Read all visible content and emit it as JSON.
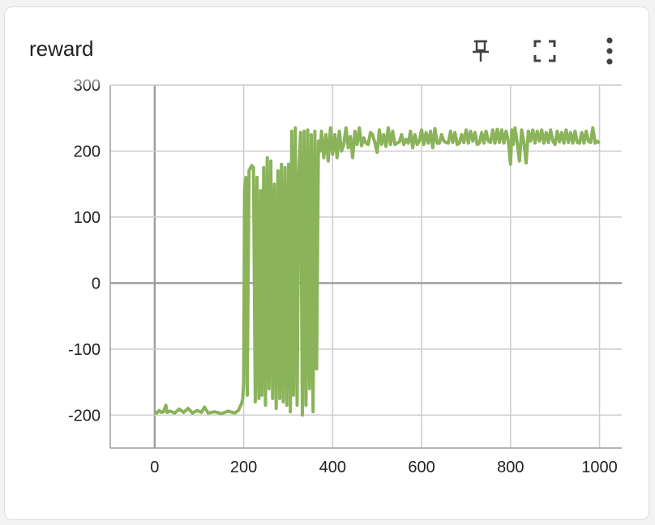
{
  "card": {
    "title": "reward",
    "actions": [
      {
        "name": "pin-icon"
      },
      {
        "name": "fullscreen-icon"
      },
      {
        "name": "more-vert-icon"
      }
    ]
  },
  "colors": {
    "series": "#8ab35a",
    "grid": "#cccccc",
    "axis": "#9e9e9e",
    "text": "#212121"
  },
  "chart_data": {
    "type": "line",
    "title": "",
    "xlabel": "",
    "ylabel": "",
    "xlim": [
      -100,
      1050
    ],
    "ylim": [
      -250,
      300
    ],
    "xticks": [
      0,
      200,
      400,
      600,
      800,
      1000
    ],
    "yticks": [
      -200,
      -100,
      0,
      100,
      200,
      300
    ],
    "xtick_labels": [
      "0",
      "200",
      "400",
      "600",
      "800",
      "1000"
    ],
    "ytick_labels": [
      "-200",
      "-100",
      "0",
      "100",
      "200",
      "300"
    ],
    "grid": true,
    "legend": "none",
    "series": [
      {
        "color": "#8ab35a",
        "points": [
          [
            0,
            -195
          ],
          [
            5,
            -197
          ],
          [
            10,
            -193
          ],
          [
            15,
            -196
          ],
          [
            20,
            -195
          ],
          [
            25,
            -185
          ],
          [
            28,
            -196
          ],
          [
            35,
            -194
          ],
          [
            45,
            -197
          ],
          [
            55,
            -191
          ],
          [
            65,
            -196
          ],
          [
            75,
            -190
          ],
          [
            85,
            -197
          ],
          [
            95,
            -193
          ],
          [
            105,
            -196
          ],
          [
            112,
            -188
          ],
          [
            120,
            -197
          ],
          [
            135,
            -195
          ],
          [
            150,
            -198
          ],
          [
            165,
            -194
          ],
          [
            180,
            -197
          ],
          [
            188,
            -193
          ],
          [
            195,
            -183
          ],
          [
            198,
            -175
          ],
          [
            200,
            -150
          ],
          [
            202,
            140
          ],
          [
            205,
            160
          ],
          [
            208,
            -170
          ],
          [
            212,
            170
          ],
          [
            218,
            178
          ],
          [
            222,
            175
          ],
          [
            226,
            -180
          ],
          [
            230,
            160
          ],
          [
            234,
            -175
          ],
          [
            238,
            140
          ],
          [
            241,
            -170
          ],
          [
            245,
            175
          ],
          [
            249,
            -185
          ],
          [
            253,
            190
          ],
          [
            257,
            -160
          ],
          [
            261,
            185
          ],
          [
            265,
            -175
          ],
          [
            269,
            150
          ],
          [
            273,
            -190
          ],
          [
            277,
            170
          ],
          [
            281,
            -175
          ],
          [
            285,
            180
          ],
          [
            289,
            -180
          ],
          [
            293,
            175
          ],
          [
            297,
            -185
          ],
          [
            301,
            180
          ],
          [
            305,
            -195
          ],
          [
            308,
            230
          ],
          [
            312,
            -170
          ],
          [
            316,
            235
          ],
          [
            320,
            -185
          ],
          [
            324,
            165
          ],
          [
            328,
            228
          ],
          [
            332,
            -200
          ],
          [
            336,
            230
          ],
          [
            340,
            -185
          ],
          [
            344,
            232
          ],
          [
            348,
            -160
          ],
          [
            352,
            225
          ],
          [
            356,
            -195
          ],
          [
            360,
            230
          ],
          [
            364,
            -130
          ],
          [
            368,
            215
          ],
          [
            372,
            200
          ],
          [
            375,
            230
          ],
          [
            380,
            190
          ],
          [
            385,
            225
          ],
          [
            390,
            185
          ],
          [
            395,
            235
          ],
          [
            400,
            195
          ],
          [
            405,
            225
          ],
          [
            410,
            190
          ],
          [
            415,
            230
          ],
          [
            420,
            200
          ],
          [
            425,
            210
          ],
          [
            430,
            235
          ],
          [
            435,
            205
          ],
          [
            440,
            222
          ],
          [
            445,
            190
          ],
          [
            450,
            230
          ],
          [
            455,
            210
          ],
          [
            460,
            235
          ],
          [
            465,
            208
          ],
          [
            470,
            220
          ],
          [
            475,
            212
          ],
          [
            480,
            210
          ],
          [
            485,
            228
          ],
          [
            490,
            225
          ],
          [
            495,
            212
          ],
          [
            500,
            198
          ],
          [
            505,
            232
          ],
          [
            510,
            210
          ],
          [
            515,
            225
          ],
          [
            520,
            207
          ],
          [
            525,
            235
          ],
          [
            530,
            210
          ],
          [
            535,
            230
          ],
          [
            540,
            210
          ],
          [
            545,
            212
          ],
          [
            550,
            214
          ],
          [
            555,
            225
          ],
          [
            560,
            210
          ],
          [
            565,
            218
          ],
          [
            570,
            212
          ],
          [
            575,
            230
          ],
          [
            580,
            205
          ],
          [
            585,
            225
          ],
          [
            590,
            210
          ],
          [
            595,
            215
          ],
          [
            600,
            232
          ],
          [
            605,
            210
          ],
          [
            610,
            228
          ],
          [
            615,
            212
          ],
          [
            620,
            230
          ],
          [
            625,
            205
          ],
          [
            630,
            234
          ],
          [
            635,
            212
          ],
          [
            640,
            212
          ],
          [
            645,
            225
          ],
          [
            650,
            215
          ],
          [
            655,
            213
          ],
          [
            660,
            212
          ],
          [
            665,
            230
          ],
          [
            670,
            213
          ],
          [
            675,
            228
          ],
          [
            680,
            210
          ],
          [
            685,
            212
          ],
          [
            690,
            225
          ],
          [
            695,
            213
          ],
          [
            700,
            232
          ],
          [
            705,
            212
          ],
          [
            710,
            230
          ],
          [
            715,
            215
          ],
          [
            720,
            228
          ],
          [
            725,
            210
          ],
          [
            730,
            212
          ],
          [
            735,
            228
          ],
          [
            740,
            212
          ],
          [
            745,
            230
          ],
          [
            750,
            215
          ],
          [
            755,
            213
          ],
          [
            760,
            232
          ],
          [
            765,
            212
          ],
          [
            770,
            233
          ],
          [
            775,
            213
          ],
          [
            780,
            232
          ],
          [
            785,
            212
          ],
          [
            790,
            230
          ],
          [
            795,
            215
          ],
          [
            800,
            180
          ],
          [
            803,
            232
          ],
          [
            806,
            210
          ],
          [
            810,
            235
          ],
          [
            815,
            212
          ],
          [
            820,
            185
          ],
          [
            825,
            232
          ],
          [
            830,
            213
          ],
          [
            835,
            182
          ],
          [
            840,
            230
          ],
          [
            845,
            215
          ],
          [
            850,
            232
          ],
          [
            855,
            212
          ],
          [
            860,
            230
          ],
          [
            865,
            215
          ],
          [
            870,
            232
          ],
          [
            875,
            212
          ],
          [
            880,
            228
          ],
          [
            885,
            213
          ],
          [
            890,
            232
          ],
          [
            895,
            215
          ],
          [
            900,
            210
          ],
          [
            905,
            230
          ],
          [
            910,
            214
          ],
          [
            915,
            228
          ],
          [
            920,
            212
          ],
          [
            925,
            232
          ],
          [
            930,
            213
          ],
          [
            935,
            228
          ],
          [
            940,
            212
          ],
          [
            945,
            230
          ],
          [
            950,
            213
          ],
          [
            955,
            212
          ],
          [
            960,
            228
          ],
          [
            965,
            212
          ],
          [
            970,
            230
          ],
          [
            975,
            215
          ],
          [
            980,
            213
          ],
          [
            985,
            235
          ],
          [
            990,
            212
          ],
          [
            995,
            215
          ],
          [
            1000,
            212
          ]
        ]
      }
    ]
  }
}
